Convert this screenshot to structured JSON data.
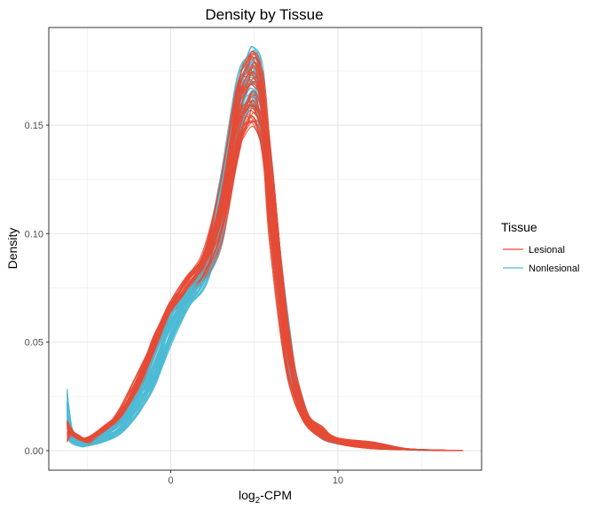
{
  "chart_data": {
    "type": "line",
    "title": "Density by Tissue",
    "xlabel": {
      "base": "log",
      "sub": "2",
      "rest": "-CPM"
    },
    "ylabel": "Density",
    "xlim": [
      -7.3,
      18.6
    ],
    "ylim": [
      -0.009,
      0.195
    ],
    "x_ticks": [
      0,
      10
    ],
    "y_ticks": [
      0.0,
      0.05,
      0.1,
      0.15
    ],
    "y_tick_labels": [
      "0.00",
      "0.05",
      "0.10",
      "0.15"
    ],
    "grid": true,
    "legend": {
      "title": "Tissue",
      "position": "right",
      "entries": [
        {
          "label": "Lesional",
          "color": "#E64B35"
        },
        {
          "label": "Nonlesional",
          "color": "#4DBBD5"
        }
      ]
    },
    "x": [
      -6.2,
      -6.0,
      -5.5,
      -5.0,
      -4.0,
      -3.0,
      -2.0,
      -1.0,
      0.0,
      1.0,
      2.0,
      3.0,
      4.0,
      4.5,
      5.0,
      5.5,
      6.0,
      7.0,
      8.0,
      9.0,
      10.0,
      12.0,
      14.0,
      16.0,
      17.5
    ],
    "series": [
      {
        "group": "Lesional",
        "color": "#E64B35",
        "count": 45,
        "min": [
          0.004,
          0.006,
          0.004,
          0.003,
          0.007,
          0.013,
          0.025,
          0.045,
          0.063,
          0.07,
          0.079,
          0.097,
          0.134,
          0.146,
          0.148,
          0.133,
          0.096,
          0.037,
          0.014,
          0.006,
          0.003,
          0.001,
          0.0004,
          0.0001,
          0.0
        ],
        "max": [
          0.014,
          0.01,
          0.007,
          0.006,
          0.011,
          0.019,
          0.034,
          0.052,
          0.068,
          0.08,
          0.092,
          0.122,
          0.168,
          0.179,
          0.184,
          0.172,
          0.13,
          0.056,
          0.02,
          0.011,
          0.006,
          0.004,
          0.001,
          0.0003,
          0.0
        ]
      },
      {
        "group": "Nonlesional",
        "color": "#4DBBD5",
        "count": 45,
        "min": [
          0.008,
          0.004,
          0.002,
          0.002,
          0.004,
          0.008,
          0.017,
          0.03,
          0.05,
          0.066,
          0.076,
          0.096,
          0.14,
          0.155,
          0.158,
          0.14,
          0.1,
          0.04,
          0.015,
          0.006,
          0.003,
          0.002,
          0.0004,
          0.0001,
          0.0
        ],
        "max": [
          0.029,
          0.012,
          0.006,
          0.005,
          0.009,
          0.015,
          0.026,
          0.042,
          0.063,
          0.073,
          0.09,
          0.125,
          0.172,
          0.182,
          0.186,
          0.176,
          0.133,
          0.058,
          0.02,
          0.01,
          0.005,
          0.004,
          0.001,
          0.0003,
          0.0
        ]
      }
    ]
  }
}
